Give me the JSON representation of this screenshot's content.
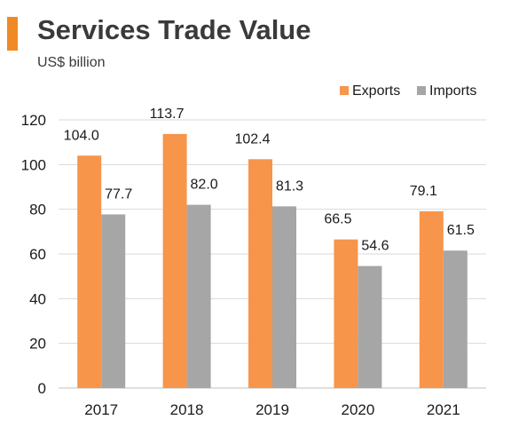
{
  "header": {
    "title": "Services Trade Value",
    "subtitle": "US$ billion"
  },
  "chart_data": {
    "type": "bar",
    "title": "Services Trade Value",
    "subtitle": "US$ billion",
    "categories": [
      "2017",
      "2018",
      "2019",
      "2020",
      "2021"
    ],
    "series": [
      {
        "name": "Exports",
        "color": "#f7954a",
        "values": [
          104.0,
          113.7,
          102.4,
          66.5,
          79.1
        ]
      },
      {
        "name": "Imports",
        "color": "#a6a6a6",
        "values": [
          77.7,
          82.0,
          81.3,
          54.6,
          61.5
        ]
      }
    ],
    "y_ticks": [
      "0",
      "20",
      "40",
      "60",
      "80",
      "100",
      "120"
    ],
    "ylim": [
      0,
      120
    ],
    "grid": true,
    "legend_position": "top-right",
    "xlabel": "",
    "ylabel": ""
  }
}
